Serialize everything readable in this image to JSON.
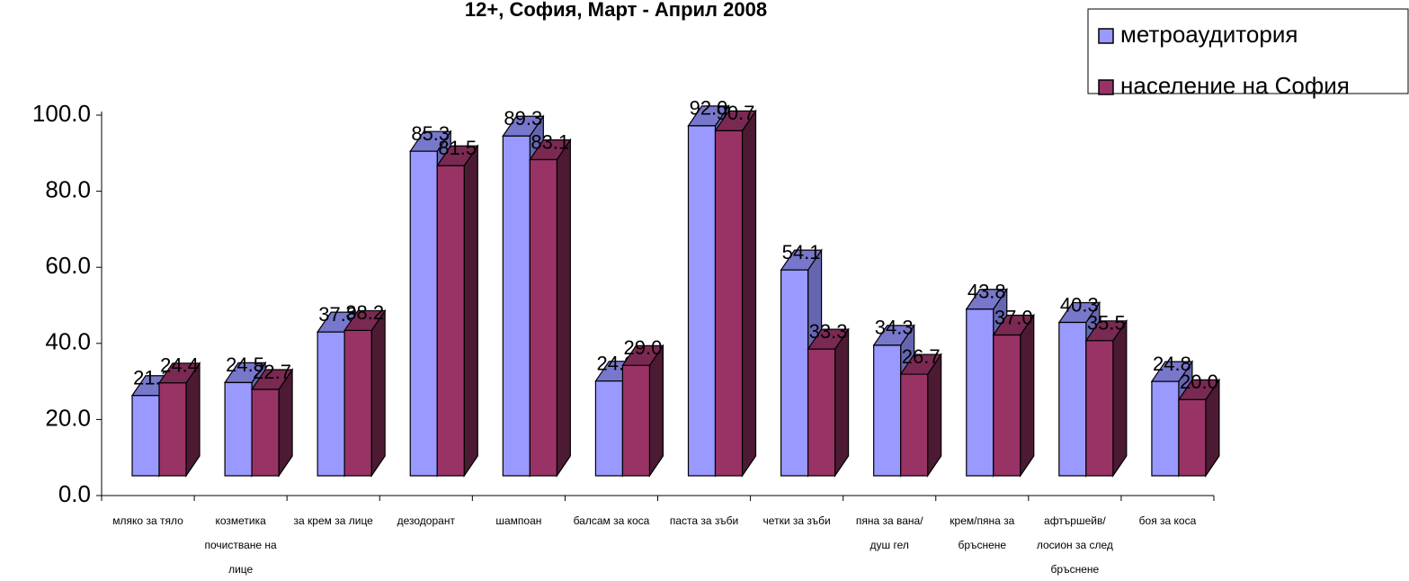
{
  "chart_data": {
    "type": "bar3d",
    "title": "12+, София, Март - Април 2008",
    "categories": [
      "мляко за тяло",
      "козметика почистване на лице",
      "за крем за лице",
      "дезодорант",
      "шампоан",
      "балсам за коса",
      "паста за зъби",
      "четки за зъби",
      "пяна за вана/душ гел",
      "крем/пяна за бръснене",
      "афтършейв/лосион за след бръснене",
      "боя за коса"
    ],
    "series": [
      {
        "name": "метроаудитория",
        "color": "#9999ff",
        "side": "#6666b0",
        "top": "#7777cc",
        "values": [
          21.1,
          24.5,
          37.8,
          85.3,
          89.3,
          24.9,
          92.0,
          54.1,
          34.3,
          43.8,
          40.3,
          24.8
        ],
        "value_labels": [
          "21.1",
          "24.5",
          "37.8",
          "85.3",
          "89.3",
          "24.9",
          "92.0",
          "54.1",
          "34.3",
          "43.8",
          "40.3",
          "24.8"
        ]
      },
      {
        "name": "население на София",
        "color": "#993366",
        "side": "#4d1a33",
        "top": "#7a2952",
        "values": [
          24.4,
          22.7,
          38.2,
          81.5,
          83.1,
          29.0,
          90.7,
          33.3,
          26.7,
          37.0,
          35.5,
          20.0
        ],
        "value_labels": [
          "24.4",
          "22.7",
          "38.2",
          "81.5",
          "83.1",
          "29.0",
          "90.7",
          "33.3",
          "26.7",
          "37.0",
          "35.5",
          "20.0"
        ]
      }
    ],
    "ylim": [
      0,
      100
    ],
    "yticks": [
      {
        "value": 0,
        "label": "0.0"
      },
      {
        "value": 20,
        "label": "20.0"
      },
      {
        "value": 40,
        "label": "40.0"
      },
      {
        "value": 60,
        "label": "60.0"
      },
      {
        "value": 80,
        "label": "80.0"
      },
      {
        "value": 100,
        "label": "100.0"
      }
    ],
    "legend": "top-right"
  }
}
